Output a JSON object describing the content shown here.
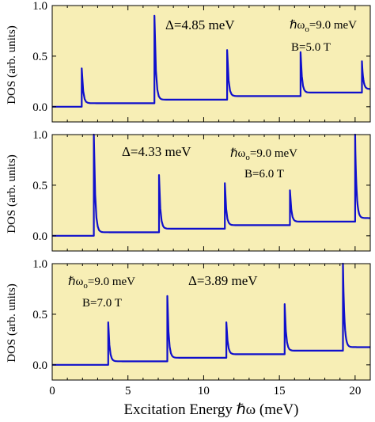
{
  "figure": {
    "background": "#f7eeb5",
    "curve_color": "#1010cc"
  },
  "chart_data": [
    {
      "type": "line",
      "ylabel": "DOS (arb. units)",
      "xlim": [
        0,
        21
      ],
      "ylim": [
        -0.15,
        1.0
      ],
      "yticks": [
        "0.0",
        "0.5",
        "1.0"
      ],
      "annotations": {
        "delta": "Δ=4.85 meV",
        "omega": "ℏω",
        "omega_sub": "o",
        "omega_val": "=9.0 meV",
        "field": "B=5.0 T"
      },
      "series": [
        {
          "onsets": [
            1.95,
            6.75,
            11.55,
            16.4,
            20.45
          ],
          "peaks": [
            0.38,
            0.9,
            0.56,
            0.54,
            0.45
          ],
          "plateau_start": 0.0
        }
      ]
    },
    {
      "type": "line",
      "ylabel": "DOS (arb. units)",
      "xlim": [
        0,
        21
      ],
      "ylim": [
        -0.15,
        1.0
      ],
      "yticks": [
        "0.0",
        "0.5",
        "1.0"
      ],
      "annotations": {
        "delta": "Δ=4.33 meV",
        "omega": "ℏω",
        "omega_sub": "o",
        "omega_val": "=9.0 meV",
        "field": "B=6.0 T"
      },
      "series": [
        {
          "onsets": [
            2.75,
            7.05,
            11.4,
            15.7,
            20.0
          ],
          "peaks": [
            1.0,
            0.6,
            0.52,
            0.45,
            1.0
          ],
          "plateau_start": 0.0
        }
      ]
    },
    {
      "type": "line",
      "ylabel": "DOS (arb. units)",
      "xlim": [
        0,
        21
      ],
      "ylim": [
        -0.15,
        1.0
      ],
      "yticks": [
        "0.0",
        "0.5",
        "1.0"
      ],
      "xticks": [
        "0",
        "5",
        "10",
        "15",
        "20"
      ],
      "xlabel": "Excitation Energy ℏω (meV)",
      "annotations": {
        "delta": "Δ=3.89 meV",
        "omega": "ℏω",
        "omega_sub": "o",
        "omega_val": "=9.0 meV",
        "field": "B=7.0 T"
      },
      "series": [
        {
          "onsets": [
            3.7,
            7.6,
            11.5,
            15.35,
            19.2
          ],
          "peaks": [
            0.42,
            0.68,
            0.42,
            0.6,
            1.0
          ],
          "plateau_start": 0.0
        }
      ]
    }
  ]
}
